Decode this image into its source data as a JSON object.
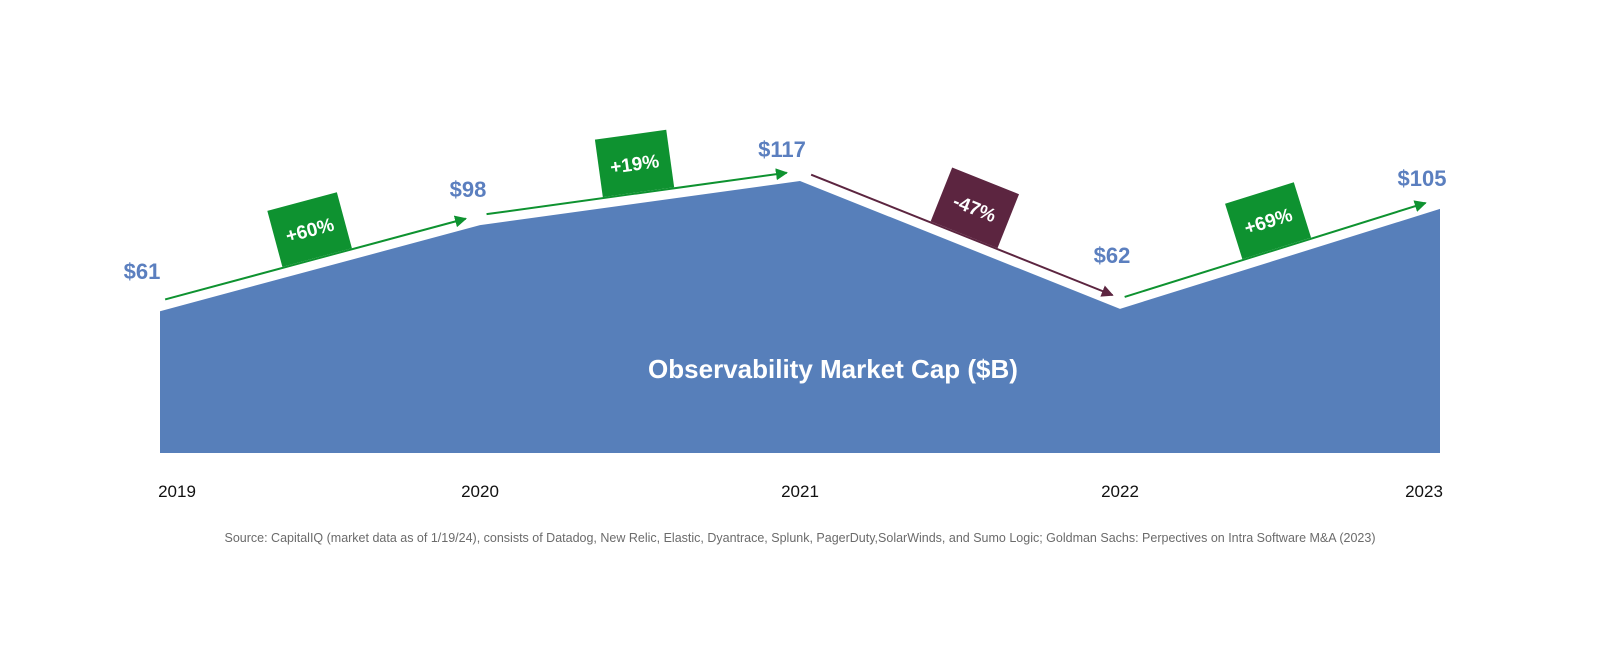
{
  "chart_data": {
    "type": "area",
    "x": [
      "2019",
      "2020",
      "2021",
      "2022",
      "2023"
    ],
    "series": [
      {
        "name": "Observability Market Cap ($B)",
        "values": [
          61,
          98,
          117,
          62,
          105
        ]
      }
    ],
    "value_labels": [
      "$61",
      "$98",
      "$117",
      "$62",
      "$105"
    ],
    "changes": [
      {
        "from": "2019",
        "to": "2020",
        "label": "+60%",
        "direction": "up"
      },
      {
        "from": "2020",
        "to": "2021",
        "label": "+19%",
        "direction": "up"
      },
      {
        "from": "2021",
        "to": "2022",
        "label": "-47%",
        "direction": "down"
      },
      {
        "from": "2022",
        "to": "2023",
        "label": "+69%",
        "direction": "up"
      }
    ],
    "ylim": [
      0,
      117
    ],
    "grid": false,
    "colors": {
      "area": "#577fba",
      "value_text": "#5b7fbf",
      "up": "#0e9230",
      "down": "#5c2540"
    }
  },
  "source": "Source: CapitalIQ (market data as of 1/19/24), consists of Datadog, New Relic, Elastic, Dyantrace, Splunk, PagerDuty,SolarWinds, and Sumo Logic; Goldman Sachs: Perpectives on Intra Software M&A (2023)"
}
